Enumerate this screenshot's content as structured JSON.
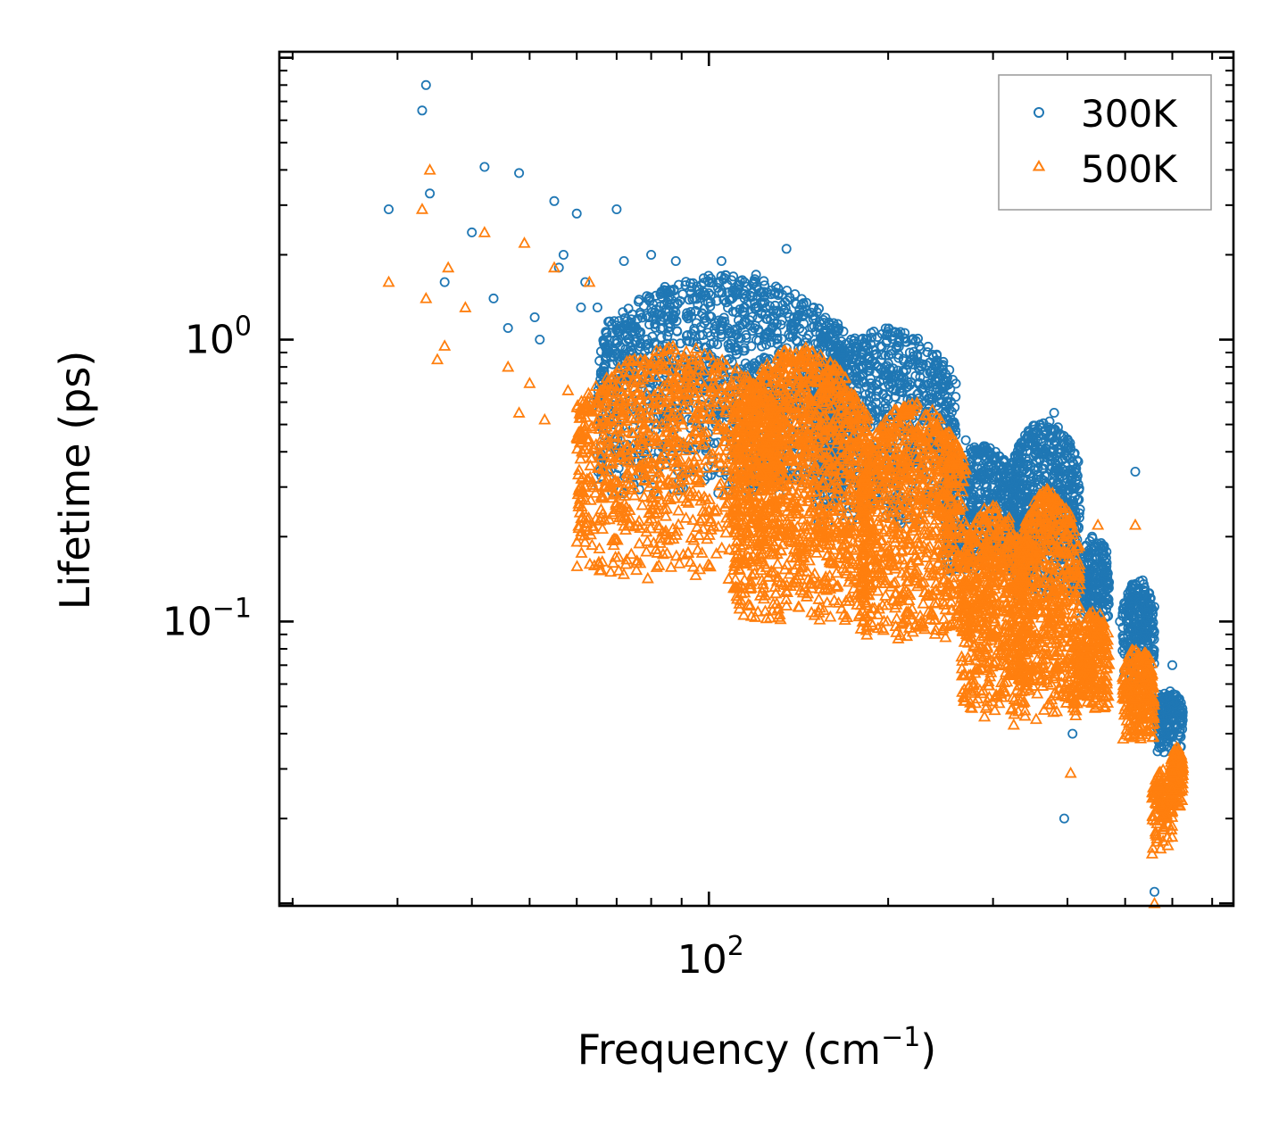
{
  "chart_data": {
    "type": "scatter",
    "xscale": "log",
    "yscale": "log",
    "xlabel": "Frequency (cm",
    "xlabel_sup": "−1",
    "xlabel_end": ")",
    "ylabel": "Lifetime (ps)",
    "xlim": [
      19,
      760
    ],
    "ylim": [
      0.0098,
      10.5
    ],
    "x_ticks": [
      {
        "value": 100,
        "base": "10",
        "exp": "2"
      }
    ],
    "y_ticks": [
      {
        "value": 1,
        "base": "10",
        "exp": "0"
      },
      {
        "value": 0.1,
        "base": "10",
        "exp": "−1"
      }
    ],
    "legend": {
      "position": "top-right"
    },
    "series": [
      {
        "name": "300K",
        "marker": "circle",
        "color": "#1f77b4",
        "points": [
          [
            29,
            2.9
          ],
          [
            33,
            6.5
          ],
          [
            33.5,
            8.0
          ],
          [
            34,
            3.3
          ],
          [
            36,
            1.6
          ],
          [
            40,
            2.4
          ],
          [
            42,
            4.1
          ],
          [
            43.5,
            1.4
          ],
          [
            46,
            1.1
          ],
          [
            48,
            3.9
          ],
          [
            51,
            1.2
          ],
          [
            52,
            1.0
          ],
          [
            55,
            3.1
          ],
          [
            56,
            1.8
          ],
          [
            57,
            2.0
          ],
          [
            60,
            2.8
          ],
          [
            61,
            1.3
          ],
          [
            62,
            1.6
          ],
          [
            64,
            0.6
          ],
          [
            65,
            1.3
          ],
          [
            68,
            0.55
          ],
          [
            70,
            2.9
          ],
          [
            72,
            1.9
          ],
          [
            75,
            1.1
          ],
          [
            80,
            2.0
          ],
          [
            84,
            1.5
          ],
          [
            88,
            1.9
          ],
          [
            92,
            0.78
          ],
          [
            98,
            1.65
          ],
          [
            105,
            1.9
          ],
          [
            112,
            1.5
          ],
          [
            120,
            1.7
          ],
          [
            135,
            2.1
          ],
          [
            150,
            1.3
          ],
          [
            160,
            1.1
          ],
          [
            180,
            1.0
          ],
          [
            200,
            0.75
          ],
          [
            225,
            0.7
          ],
          [
            240,
            0.45
          ],
          [
            260,
            0.42
          ],
          [
            300,
            0.3
          ],
          [
            330,
            0.38
          ],
          [
            360,
            0.5
          ],
          [
            380,
            0.55
          ],
          [
            420,
            0.25
          ],
          [
            440,
            0.2
          ],
          [
            490,
            0.1
          ],
          [
            520,
            0.34
          ],
          [
            535,
            0.14
          ],
          [
            560,
            0.011
          ],
          [
            570,
            0.055
          ],
          [
            600,
            0.07
          ],
          [
            408,
            0.04
          ],
          [
            395,
            0.02
          ],
          [
            250,
            0.58
          ],
          [
            270,
            0.44
          ],
          [
            310,
            0.28
          ],
          [
            345,
            0.45
          ]
        ],
        "bands": [
          {
            "x_from": 65,
            "x_to": 170,
            "y_high": 1.7,
            "y_low": 0.28,
            "count": 1400
          },
          {
            "x_from": 150,
            "x_to": 260,
            "y_high": 1.1,
            "y_low": 0.22,
            "count": 900
          },
          {
            "x_from": 250,
            "x_to": 330,
            "y_high": 0.42,
            "y_low": 0.15,
            "count": 500
          },
          {
            "x_from": 320,
            "x_to": 420,
            "y_high": 0.52,
            "y_low": 0.12,
            "count": 600
          },
          {
            "x_from": 420,
            "x_to": 470,
            "y_high": 0.2,
            "y_low": 0.1,
            "count": 200
          },
          {
            "x_from": 495,
            "x_to": 560,
            "y_high": 0.14,
            "y_low": 0.06,
            "count": 250
          },
          {
            "x_from": 565,
            "x_to": 625,
            "y_high": 0.057,
            "y_low": 0.034,
            "count": 160
          }
        ]
      },
      {
        "name": "500K",
        "marker": "triangle",
        "color": "#ff7f0e",
        "points": [
          [
            29,
            1.6
          ],
          [
            33,
            2.9
          ],
          [
            33.5,
            1.4
          ],
          [
            34,
            4.0
          ],
          [
            35,
            0.85
          ],
          [
            36,
            0.95
          ],
          [
            36.5,
            1.8
          ],
          [
            39,
            1.3
          ],
          [
            42,
            2.4
          ],
          [
            46,
            0.8
          ],
          [
            48,
            0.55
          ],
          [
            49,
            2.2
          ],
          [
            50,
            0.7
          ],
          [
            53,
            0.52
          ],
          [
            55,
            1.8
          ],
          [
            58,
            0.66
          ],
          [
            60,
            0.45
          ],
          [
            62,
            0.3
          ],
          [
            63,
            1.6
          ],
          [
            67,
            0.3
          ],
          [
            70,
            0.25
          ],
          [
            75,
            0.28
          ],
          [
            450,
            0.22
          ],
          [
            520,
            0.22
          ],
          [
            405,
            0.029
          ],
          [
            560,
            0.01
          ],
          [
            555,
            0.015
          ],
          [
            325,
            0.043
          ],
          [
            410,
            0.09
          ]
        ],
        "bands": [
          {
            "x_from": 60,
            "x_to": 130,
            "y_high": 0.95,
            "y_low": 0.14,
            "count": 1000
          },
          {
            "x_from": 110,
            "x_to": 185,
            "y_high": 0.95,
            "y_low": 0.1,
            "count": 1300
          },
          {
            "x_from": 180,
            "x_to": 270,
            "y_high": 0.6,
            "y_low": 0.085,
            "count": 900
          },
          {
            "x_from": 265,
            "x_to": 340,
            "y_high": 0.26,
            "y_low": 0.045,
            "count": 600
          },
          {
            "x_from": 330,
            "x_to": 420,
            "y_high": 0.3,
            "y_low": 0.045,
            "count": 650
          },
          {
            "x_from": 420,
            "x_to": 470,
            "y_high": 0.11,
            "y_low": 0.048,
            "count": 220
          },
          {
            "x_from": 495,
            "x_to": 560,
            "y_high": 0.082,
            "y_low": 0.037,
            "count": 250
          },
          {
            "x_from": 555,
            "x_to": 600,
            "y_high": 0.03,
            "y_low": 0.015,
            "count": 120
          },
          {
            "x_from": 595,
            "x_to": 625,
            "y_high": 0.036,
            "y_low": 0.022,
            "count": 140
          }
        ]
      }
    ]
  }
}
